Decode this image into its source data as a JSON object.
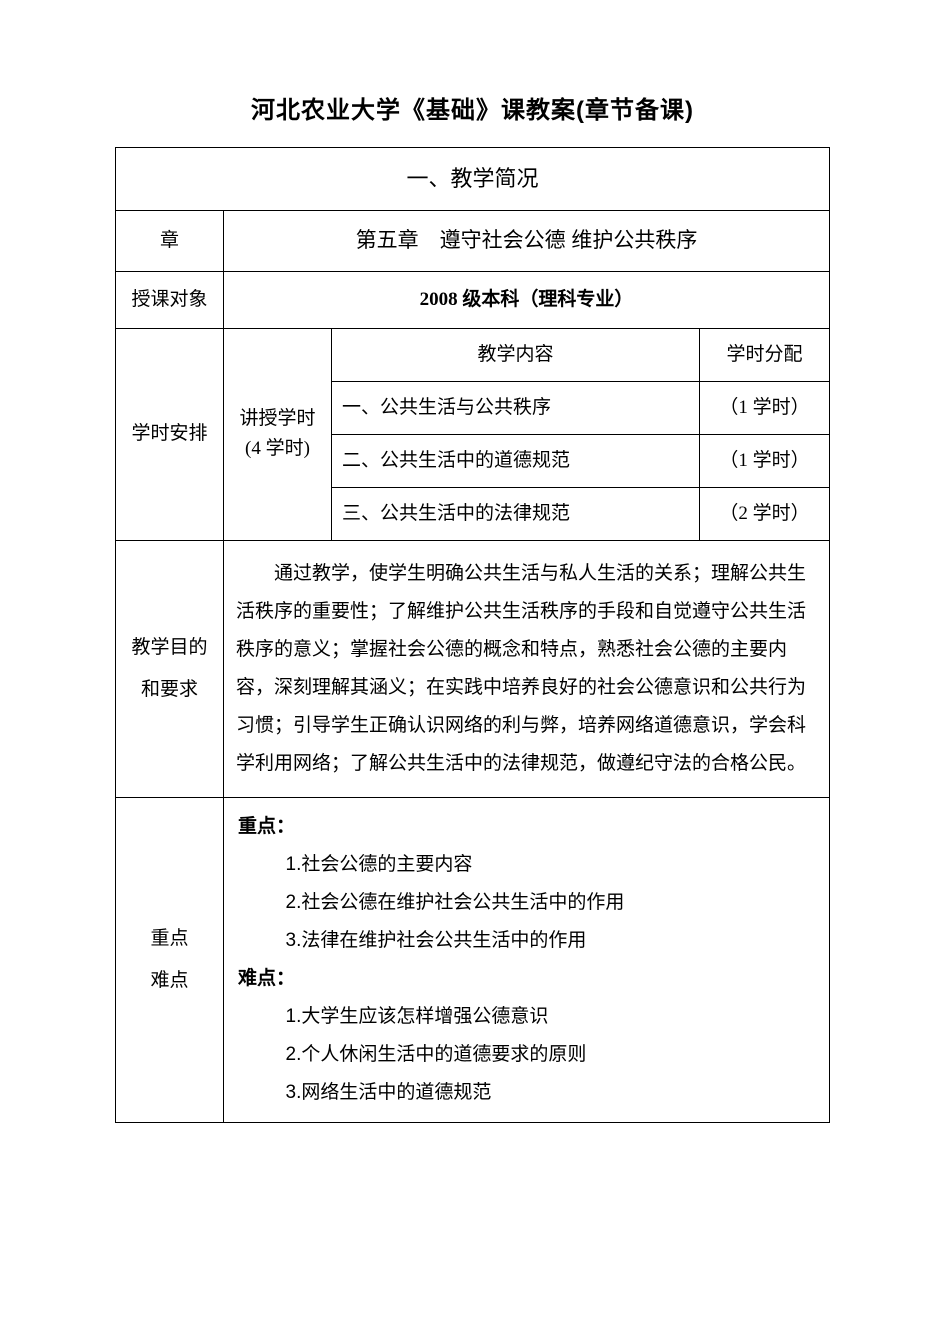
{
  "title": "河北农业大学《基础》课教案(章节备课)",
  "section_header": "一、教学简况",
  "rows": {
    "chapter": {
      "label": "章",
      "value": "第五章　遵守社会公德  维护公共秩序"
    },
    "audience": {
      "label": "授课对象",
      "value": "2008 级本科（理科专业）"
    },
    "schedule": {
      "label": "学时安排",
      "hours_label_1": "讲授学时",
      "hours_label_2": "(4 学时)",
      "content_header": "教学内容",
      "allocation_header": "学时分配",
      "items": [
        {
          "content": "一、公共生活与公共秩序",
          "allocation": "（1 学时）"
        },
        {
          "content": "二、公共生活中的道德规范",
          "allocation": "（1 学时）"
        },
        {
          "content": "三、公共生活中的法律规范",
          "allocation": "（2 学时）"
        }
      ]
    },
    "objectives": {
      "label_1": "教学目的",
      "label_2": "和要求",
      "content": "通过教学，使学生明确公共生活与私人生活的关系；理解公共生活秩序的重要性；了解维护公共生活秩序的手段和自觉遵守公共生活秩序的意义；掌握社会公德的概念和特点，熟悉社会公德的主要内容，深刻理解其涵义；在实践中培养良好的社会公德意识和公共行为习惯；引导学生正确认识网络的利与弊，培养网络道德意识，学会科学利用网络；了解公共生活中的法律规范，做遵纪守法的合格公民。"
    },
    "keypoints": {
      "label_1": "重点",
      "label_2": "难点",
      "heading_1": "重点：",
      "items_1": [
        "1.社会公德的主要内容",
        "2.社会公德在维护社会公共生活中的作用",
        "3.法律在维护社会公共生活中的作用"
      ],
      "heading_2": "难点：",
      "items_2": [
        "1.大学生应该怎样增强公德意识",
        "2.个人休闲生活中的道德要求的原则",
        "3.网络生活中的道德规范"
      ]
    }
  }
}
